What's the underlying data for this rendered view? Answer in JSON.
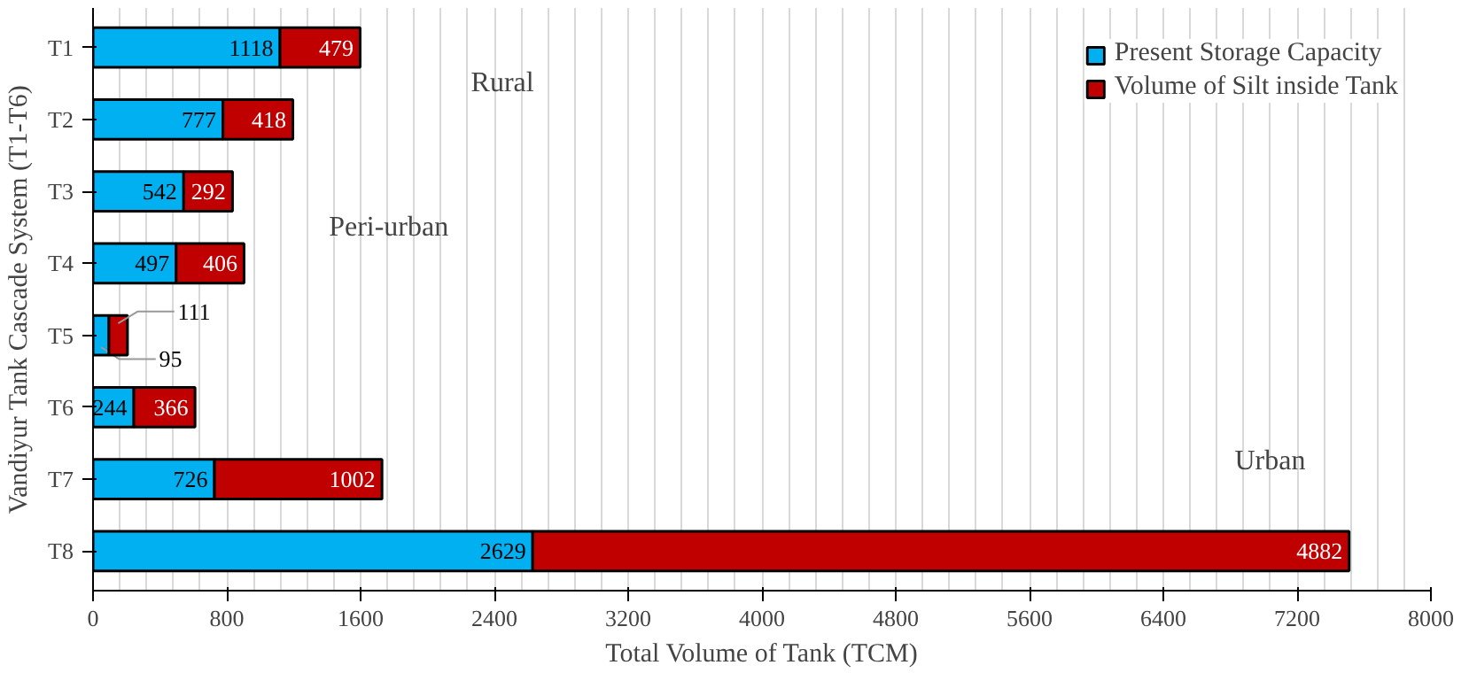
{
  "chart_data": {
    "type": "bar",
    "orientation": "horizontal",
    "stacked": true,
    "categories": [
      "T1",
      "T2",
      "T3",
      "T4",
      "T5",
      "T6",
      "T7",
      "T8"
    ],
    "series": [
      {
        "name": "Present Storage Capacity",
        "color": "#00b0f0",
        "values": [
          1118,
          777,
          542,
          497,
          95,
          244,
          726,
          2629
        ]
      },
      {
        "name": "Volume of Silt inside Tank",
        "color": "#c00000",
        "values": [
          479,
          418,
          292,
          406,
          111,
          366,
          1002,
          4882
        ]
      }
    ],
    "xlabel": "Total Volume of Tank (TCM)",
    "ylabel": "Vandiyur Tank Cascade System (T1-T6)",
    "xlim": [
      0,
      8000
    ],
    "xticks": [
      0,
      800,
      1600,
      2400,
      3200,
      4000,
      4800,
      5600,
      6400,
      7200,
      8000
    ],
    "grid": "x",
    "legend": "top right",
    "data_labels": true,
    "annotations": [
      "Rural",
      "Peri-urban",
      "Urban"
    ]
  }
}
